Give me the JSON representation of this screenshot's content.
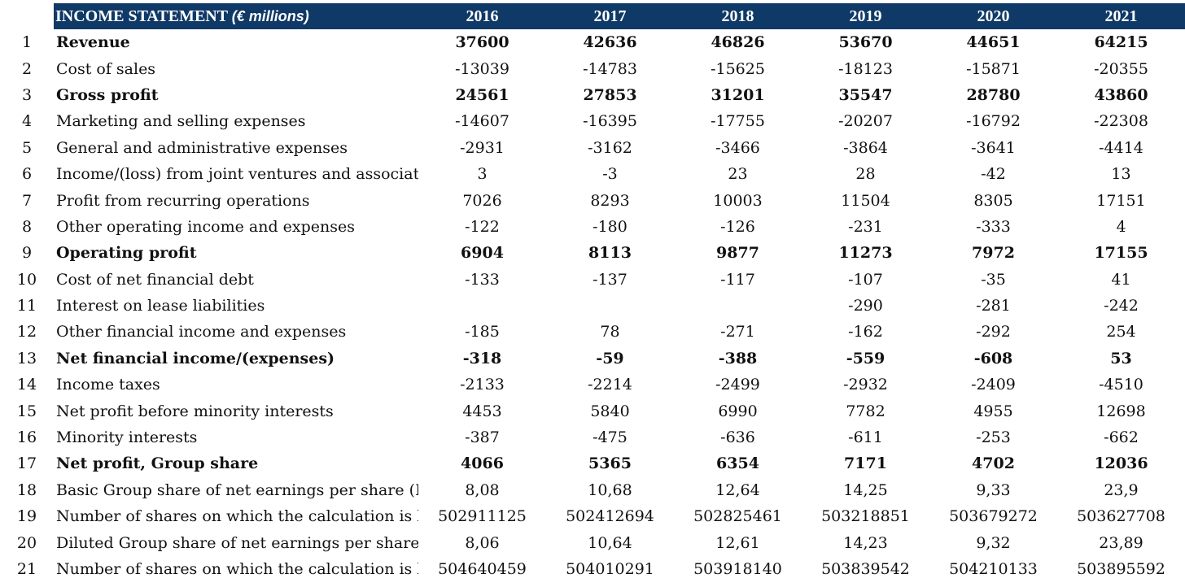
{
  "header": {
    "title": "INCOME STATEMENT",
    "unit": "(€ millions)",
    "years": [
      "2016",
      "2017",
      "2018",
      "2019",
      "2020",
      "2021"
    ]
  },
  "rows": [
    {
      "n": "1",
      "label": "Revenue",
      "bold": true,
      "values": [
        "37600",
        "42636",
        "46826",
        "53670",
        "44651",
        "64215"
      ]
    },
    {
      "n": "2",
      "label": "Cost of sales",
      "bold": false,
      "values": [
        "-13039",
        "-14783",
        "-15625",
        "-18123",
        "-15871",
        "-20355"
      ]
    },
    {
      "n": "3",
      "label": "Gross profit",
      "bold": true,
      "values": [
        "24561",
        "27853",
        "31201",
        "35547",
        "28780",
        "43860"
      ]
    },
    {
      "n": "4",
      "label": "Marketing and selling expenses",
      "bold": false,
      "values": [
        "-14607",
        "-16395",
        "-17755",
        "-20207",
        "-16792",
        "-22308"
      ]
    },
    {
      "n": "5",
      "label": "General and administrative expenses",
      "bold": false,
      "values": [
        "-2931",
        "-3162",
        "-3466",
        "-3864",
        "-3641",
        "-4414"
      ]
    },
    {
      "n": "6",
      "label": "Income/(loss) from joint ventures and associates",
      "bold": false,
      "values": [
        "3",
        "-3",
        "23",
        "28",
        "-42",
        "13"
      ]
    },
    {
      "n": "7",
      "label": "Profit from recurring operations",
      "bold": false,
      "values": [
        "7026",
        "8293",
        "10003",
        "11504",
        "8305",
        "17151"
      ]
    },
    {
      "n": "8",
      "label": "Other operating income and expenses",
      "bold": false,
      "values": [
        "-122",
        "-180",
        "-126",
        "-231",
        "-333",
        "4"
      ]
    },
    {
      "n": "9",
      "label": "Operating profit",
      "bold": true,
      "values": [
        "6904",
        "8113",
        "9877",
        "11273",
        "7972",
        "17155"
      ]
    },
    {
      "n": "10",
      "label": "Cost of net financial debt",
      "bold": false,
      "values": [
        "-133",
        "-137",
        "-117",
        "-107",
        "-35",
        "41"
      ]
    },
    {
      "n": "11",
      "label": "Interest on lease liabilities",
      "bold": false,
      "values": [
        "",
        "",
        "",
        "-290",
        "-281",
        "-242"
      ]
    },
    {
      "n": "12",
      "label": "Other financial income and expenses",
      "bold": false,
      "values": [
        "-185",
        "78",
        "-271",
        "-162",
        "-292",
        "254"
      ]
    },
    {
      "n": "13",
      "label": "Net financial income/(expenses)",
      "bold": true,
      "values": [
        "-318",
        "-59",
        "-388",
        "-559",
        "-608",
        "53"
      ]
    },
    {
      "n": "14",
      "label": "Income taxes",
      "bold": false,
      "values": [
        "-2133",
        "-2214",
        "-2499",
        "-2932",
        "-2409",
        "-4510"
      ]
    },
    {
      "n": "15",
      "label": "Net profit before minority interests",
      "bold": false,
      "values": [
        "4453",
        "5840",
        "6990",
        "7782",
        "4955",
        "12698"
      ]
    },
    {
      "n": "16",
      "label": "Minority interests",
      "bold": false,
      "values": [
        "-387",
        "-475",
        "-636",
        "-611",
        "-253",
        "-662"
      ]
    },
    {
      "n": "17",
      "label": "Net profit, Group share",
      "bold": true,
      "values": [
        "4066",
        "5365",
        "6354",
        "7171",
        "4702",
        "12036"
      ]
    },
    {
      "n": "18",
      "label": "Basic Group share of net earnings per share (EUR",
      "bold": false,
      "values": [
        "8,08",
        "10,68",
        "12,64",
        "14,25",
        "9,33",
        "23,9"
      ]
    },
    {
      "n": "19",
      "label": "Number of shares on which the calculation is base",
      "bold": false,
      "values": [
        "502911125",
        "502412694",
        "502825461",
        "503218851",
        "503679272",
        "503627708"
      ]
    },
    {
      "n": "20",
      "label": "Diluted Group share of net earnings per share (EU",
      "bold": false,
      "values": [
        "8,06",
        "10,64",
        "12,61",
        "14,23",
        "9,32",
        "23,89"
      ]
    },
    {
      "n": "21",
      "label": "Number of shares on which the calculation is base",
      "bold": false,
      "values": [
        "504640459",
        "504010291",
        "503918140",
        "503839542",
        "504210133",
        "503895592"
      ]
    }
  ]
}
